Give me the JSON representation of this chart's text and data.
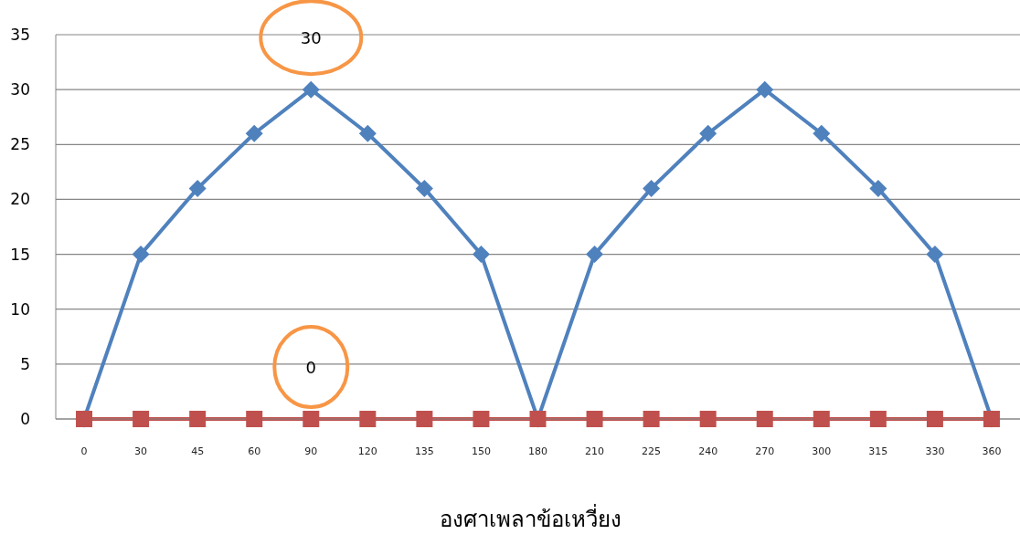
{
  "chart_data": {
    "type": "line",
    "categories": [
      "0",
      "30",
      "45",
      "60",
      "90",
      "120",
      "135",
      "150",
      "180",
      "210",
      "225",
      "240",
      "270",
      "300",
      "315",
      "330",
      "360"
    ],
    "series": [
      {
        "color": "#4f81bd",
        "marker": "diamond",
        "values": [
          0,
          15,
          21,
          26,
          30,
          26,
          21,
          15,
          0,
          15,
          21,
          26,
          30,
          26,
          21,
          15,
          0
        ]
      },
      {
        "color": "#c0504d",
        "marker": "square",
        "values": [
          0,
          0,
          0,
          0,
          0,
          0,
          0,
          0,
          0,
          0,
          0,
          0,
          0,
          0,
          0,
          0,
          0
        ]
      }
    ],
    "ylim": [
      0,
      35
    ],
    "yticks": [
      0,
      5,
      10,
      15,
      20,
      25,
      30,
      35
    ],
    "xlabel": "องศาเพลาข้อเหวี่ยง",
    "annotations": [
      {
        "text": "30",
        "x": "90",
        "y": 30
      },
      {
        "text": "0",
        "x": "90",
        "y": 0
      }
    ],
    "grid": "y",
    "line_style": "solid"
  }
}
